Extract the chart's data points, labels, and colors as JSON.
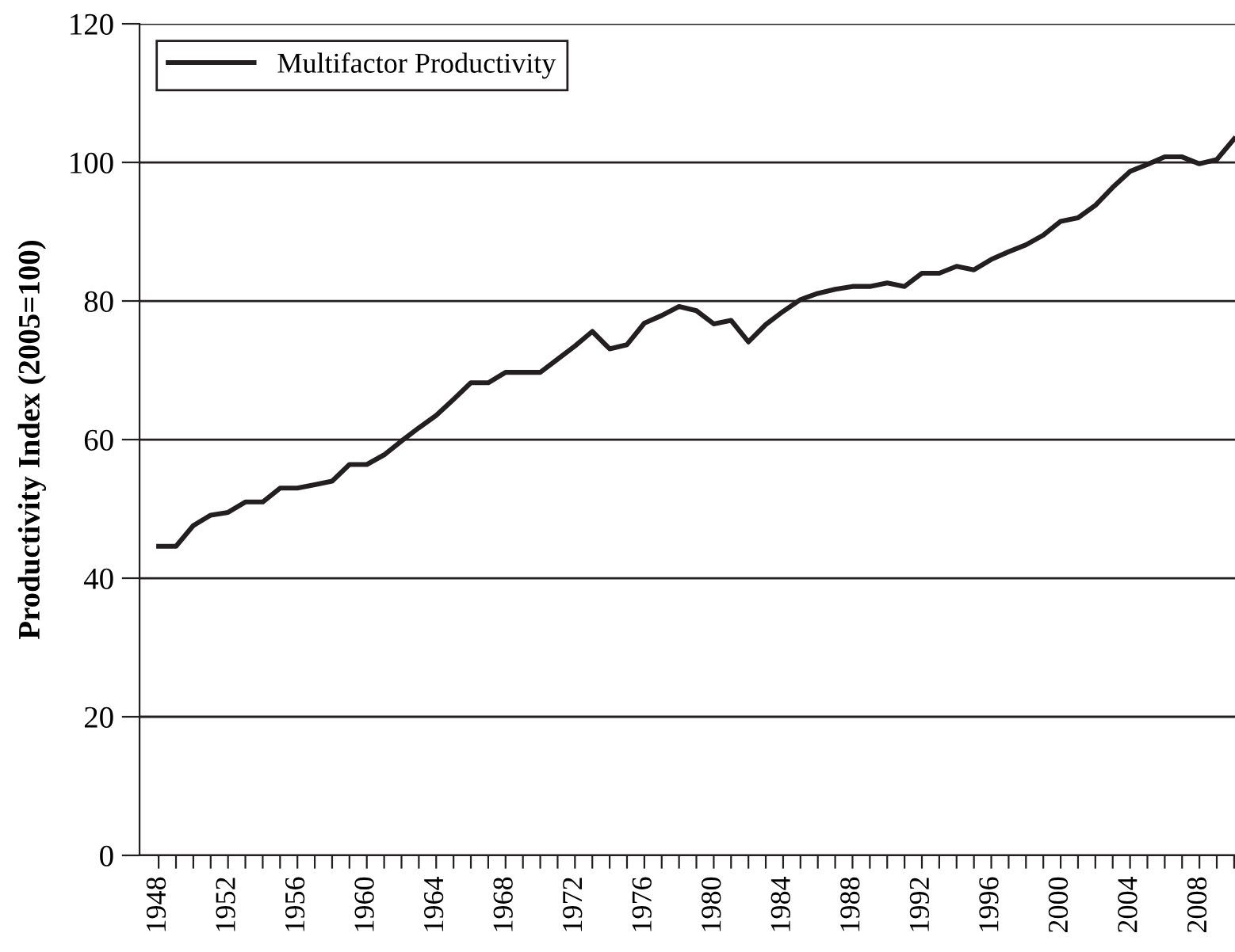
{
  "chart_data": {
    "type": "line",
    "ylabel": "Productivity Index (2005=100)",
    "categories": [
      "1948",
      null,
      null,
      null,
      "1952",
      null,
      null,
      null,
      "1956",
      null,
      null,
      null,
      "1960",
      null,
      null,
      null,
      "1964",
      null,
      null,
      null,
      "1968",
      null,
      null,
      null,
      "1972",
      null,
      null,
      null,
      "1976",
      null,
      null,
      null,
      "1980",
      null,
      null,
      null,
      "1984",
      null,
      null,
      null,
      "1988",
      null,
      null,
      null,
      "1992",
      null,
      null,
      null,
      "1996",
      null,
      null,
      null,
      "2000",
      null,
      null,
      null,
      "2004",
      null,
      null,
      null,
      "2008",
      null,
      null
    ],
    "series": [
      {
        "name": "Multifactor Productivity",
        "color": "#231f20",
        "values": [
          44.6,
          44.6,
          47.6,
          49.1,
          49.5,
          51.0,
          51.0,
          53.0,
          53.0,
          53.5,
          54.0,
          56.4,
          56.4,
          57.8,
          59.8,
          61.7,
          63.5,
          65.8,
          68.2,
          68.2,
          69.7,
          69.7,
          69.7,
          71.6,
          73.5,
          75.6,
          73.1,
          73.7,
          76.8,
          77.9,
          79.2,
          78.6,
          76.7,
          77.2,
          74.1,
          76.6,
          78.5,
          80.2,
          81.1,
          81.7,
          82.1,
          82.1,
          82.6,
          82.1,
          84.0,
          84.0,
          85.0,
          84.5,
          86.0,
          87.1,
          88.1,
          89.5,
          91.5,
          92.0,
          93.8,
          96.4,
          98.7,
          99.7,
          100.8,
          100.8,
          99.8,
          100.4,
          103.4
        ]
      }
    ],
    "ylim": [
      0,
      120
    ],
    "yticks": [
      0,
      20,
      40,
      60,
      80,
      100,
      120
    ],
    "grid": "y",
    "legend": "top left",
    "line_style": "solid"
  }
}
